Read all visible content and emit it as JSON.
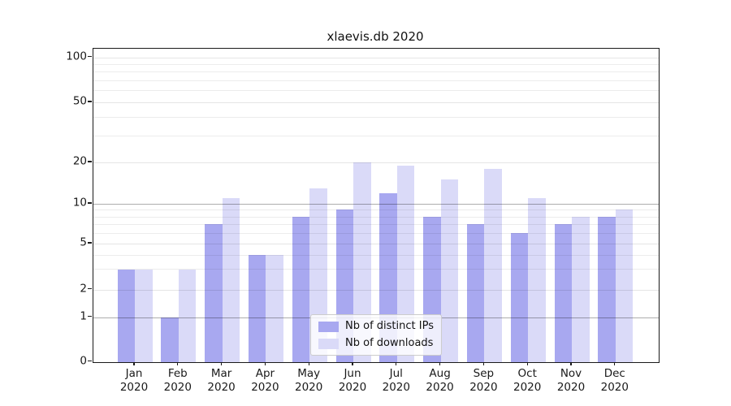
{
  "figure_title": "xlaevis.db 2020",
  "chart_data": {
    "type": "bar",
    "title": "xlaevis.db 2020",
    "xlabel": "",
    "ylabel": "",
    "yscale": "log-like with zero baseline (symlog)",
    "ylim": [
      0,
      114
    ],
    "grid": true,
    "ytick_values": [
      0,
      1,
      2,
      5,
      10,
      20,
      50,
      100
    ],
    "ytick_labels": [
      "0",
      "1",
      "2",
      "5",
      "10",
      "20",
      "50",
      "100"
    ],
    "minor_gridline_values": [
      3,
      4,
      6,
      7,
      8,
      9,
      30,
      40,
      60,
      70,
      80,
      90
    ],
    "emphasized_gridline_values": [
      1,
      10
    ],
    "categories": [
      "Jan 2020",
      "Feb 2020",
      "Mar 2020",
      "Apr 2020",
      "May 2020",
      "Jun 2020",
      "Jul 2020",
      "Aug 2020",
      "Sep 2020",
      "Oct 2020",
      "Nov 2020",
      "Dec 2020"
    ],
    "series": [
      {
        "name": "Nb of distinct IPs",
        "color": "#a8a8f0",
        "values": [
          3,
          1,
          7,
          4,
          8,
          9,
          12,
          8,
          7,
          6,
          7,
          8
        ]
      },
      {
        "name": "Nb of downloads",
        "color": "#dadaf8",
        "values": [
          3,
          3,
          11,
          4,
          13,
          20,
          19,
          15,
          18,
          11,
          8,
          9
        ]
      }
    ],
    "legend": {
      "position": "lower center",
      "entries": [
        "Nb of distinct IPs",
        "Nb of downloads"
      ]
    }
  }
}
